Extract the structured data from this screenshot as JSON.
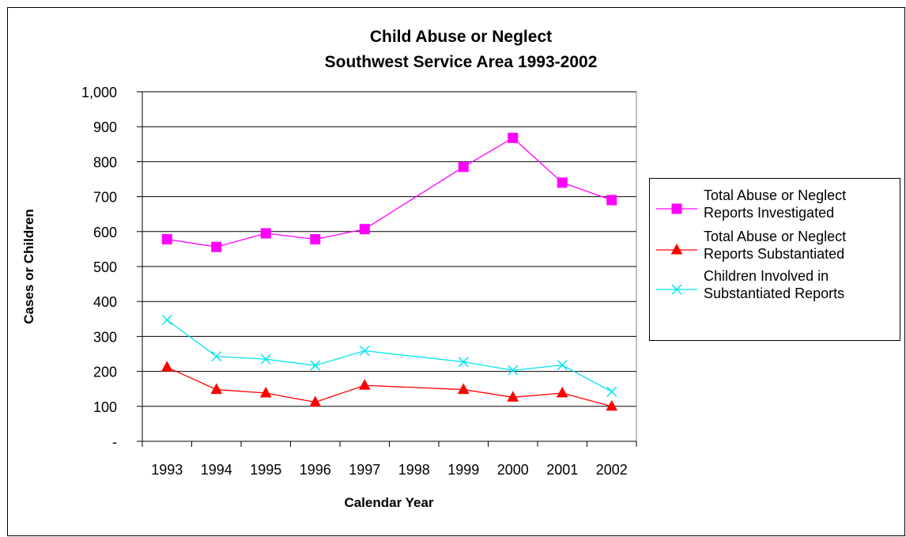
{
  "chart_data": {
    "type": "line",
    "title": "Child Abuse or Neglect",
    "subtitle": "Southwest Service Area 1993-2002",
    "xlabel": "Calendar Year",
    "ylabel": "Cases or Children",
    "categories": [
      "1993",
      "1994",
      "1995",
      "1996",
      "1997",
      "1998",
      "1999",
      "2000",
      "2001",
      "2002"
    ],
    "y_tick_labels": [
      "-",
      "100",
      "200",
      "300",
      "400",
      "500",
      "600",
      "700",
      "800",
      "900",
      "1,000"
    ],
    "ylim": [
      0,
      1000
    ],
    "grid": true,
    "legend_position": "right",
    "series": [
      {
        "name_lines": [
          "Total Abuse or Neglect",
          "Reports Investigated"
        ],
        "color": "#ff00ff",
        "marker": "square",
        "values": [
          578,
          556,
          595,
          578,
          607,
          null,
          785,
          868,
          740,
          690
        ]
      },
      {
        "name_lines": [
          "Total Abuse or Neglect",
          "Reports Substantiated"
        ],
        "color": "#ff0000",
        "marker": "triangle",
        "values": [
          212,
          148,
          138,
          112,
          160,
          null,
          148,
          126,
          138,
          100
        ]
      },
      {
        "name_lines": [
          "Children Involved in",
          "Substantiated Reports"
        ],
        "color": "#00e5ee",
        "marker": "x",
        "values": [
          347,
          243,
          235,
          217,
          259,
          null,
          227,
          203,
          218,
          142
        ]
      }
    ]
  }
}
